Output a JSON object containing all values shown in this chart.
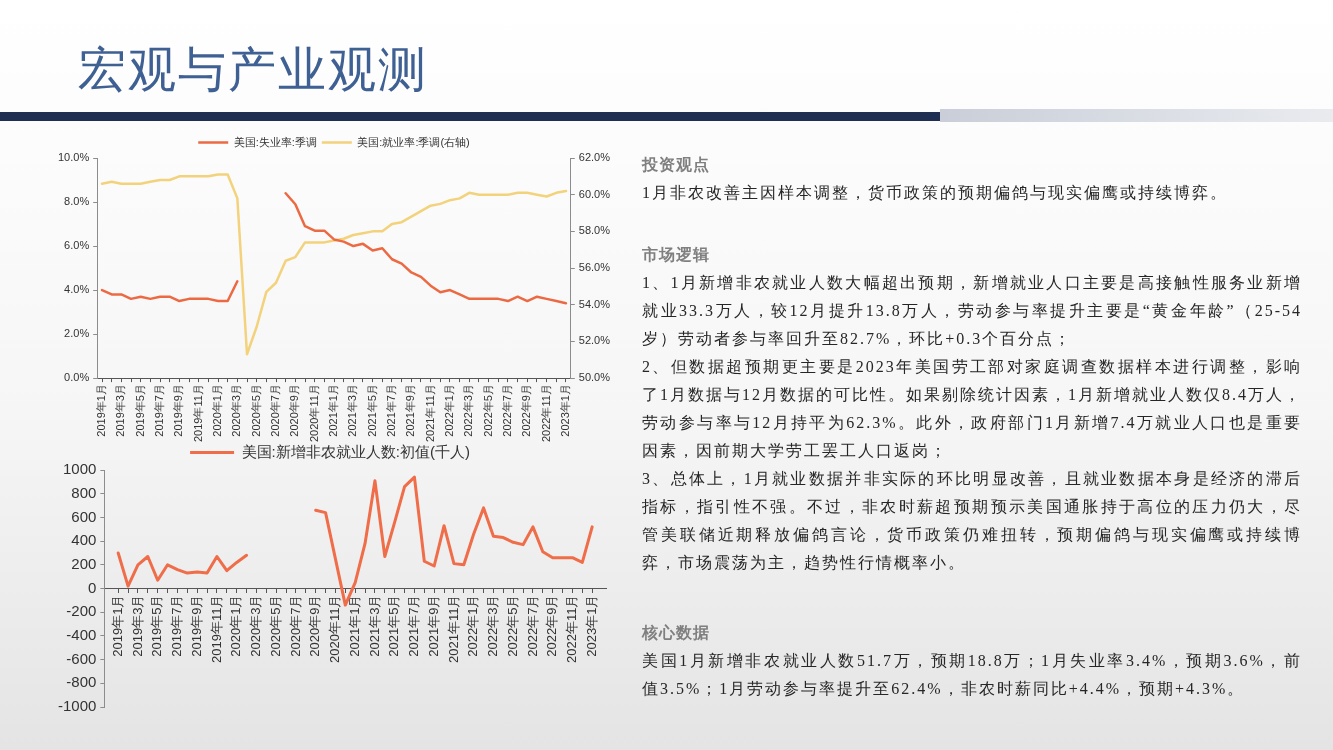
{
  "chart_data": [
    {
      "type": "line",
      "title": "宏观与产业观测",
      "categories": [
        "2019年1月",
        null,
        "2019年3月",
        null,
        "2019年5月",
        null,
        "2019年7月",
        null,
        "2019年9月",
        null,
        "2019年11月",
        null,
        "2020年1月",
        null,
        "2020年3月",
        null,
        "2020年5月",
        null,
        "2020年7月",
        null,
        "2020年9月",
        null,
        "2020年11月",
        null,
        "2021年1月",
        null,
        "2021年3月",
        null,
        "2021年5月",
        null,
        "2021年7月",
        null,
        "2021年9月",
        null,
        "2021年11月",
        null,
        "2022年1月",
        null,
        "2022年3月",
        null,
        "2022年5月",
        null,
        "2022年7月",
        null,
        "2022年9月",
        null,
        "2022年11月",
        null,
        "2023年1月"
      ],
      "series": [
        {
          "name": "美国:失业率:季调",
          "color": "#ec6a43",
          "values": [
            4.0,
            3.8,
            3.8,
            3.6,
            3.7,
            3.6,
            3.7,
            3.7,
            3.5,
            3.6,
            3.6,
            3.6,
            3.5,
            3.5,
            4.4,
            null,
            null,
            null,
            null,
            8.4,
            7.9,
            6.9,
            6.7,
            6.7,
            6.3,
            6.2,
            6.0,
            6.1,
            5.8,
            5.9,
            5.4,
            5.2,
            4.8,
            4.6,
            4.2,
            3.9,
            4.0,
            3.8,
            3.6,
            3.6,
            3.6,
            3.6,
            3.5,
            3.7,
            3.5,
            3.7,
            3.6,
            3.5,
            3.4
          ]
        },
        {
          "name": "美国:就业率:季调(右轴)",
          "color": "#f3d27c",
          "axis": "y2",
          "values": [
            60.6,
            60.7,
            60.6,
            60.6,
            60.6,
            60.7,
            60.8,
            60.8,
            61.0,
            61.0,
            61.0,
            61.0,
            61.1,
            61.1,
            59.8,
            51.3,
            52.8,
            54.7,
            55.2,
            56.4,
            56.6,
            57.4,
            57.4,
            57.4,
            57.5,
            57.6,
            57.8,
            57.9,
            58.0,
            58.0,
            58.4,
            58.5,
            58.8,
            59.1,
            59.4,
            59.5,
            59.7,
            59.8,
            60.1,
            60.0,
            60.0,
            60.0,
            60.0,
            60.1,
            60.1,
            60.0,
            59.9,
            60.1,
            60.2
          ]
        }
      ],
      "ylim": [
        0,
        10
      ],
      "yticks": [
        {
          "value": 0,
          "label": "0.0%"
        },
        {
          "value": 2,
          "label": "2.0%"
        },
        {
          "value": 4,
          "label": "4.0%"
        },
        {
          "value": 6,
          "label": "6.0%"
        },
        {
          "value": 8,
          "label": "8.0%"
        },
        {
          "value": 10,
          "label": "10.0%"
        }
      ],
      "y2lim": [
        50,
        62
      ],
      "y2ticks": [
        {
          "value": 50,
          "label": "50.0%"
        },
        {
          "value": 52,
          "label": "52.0%"
        },
        {
          "value": 54,
          "label": "54.0%"
        },
        {
          "value": 56,
          "label": "56.0%"
        },
        {
          "value": 58,
          "label": "58.0%"
        },
        {
          "value": 60,
          "label": "60.0%"
        },
        {
          "value": 62,
          "label": "62.0%"
        }
      ],
      "legend": "top"
    },
    {
      "type": "line",
      "categories": [
        "2019年1月",
        null,
        "2019年3月",
        null,
        "2019年5月",
        null,
        "2019年7月",
        null,
        "2019年9月",
        null,
        "2019年11月",
        null,
        "2020年1月",
        null,
        "2020年3月",
        null,
        "2020年5月",
        null,
        "2020年7月",
        null,
        "2020年9月",
        null,
        "2020年11月",
        null,
        "2021年1月",
        null,
        "2021年3月",
        null,
        "2021年5月",
        null,
        "2021年7月",
        null,
        "2021年9月",
        null,
        "2021年11月",
        null,
        "2022年1月",
        null,
        "2022年3月",
        null,
        "2022年5月",
        null,
        "2022年7月",
        null,
        "2022年9月",
        null,
        "2022年11月",
        null,
        "2023年1月"
      ],
      "series": [
        {
          "name": "美国:新增非农就业人数:初值(千人)",
          "color": "#ef6d48",
          "values": [
            300,
            20,
            200,
            270,
            70,
            200,
            160,
            130,
            140,
            130,
            270,
            150,
            220,
            280,
            null,
            null,
            null,
            null,
            null,
            null,
            660,
            640,
            250,
            -140,
            50,
            380,
            910,
            270,
            560,
            860,
            940,
            230,
            190,
            530,
            210,
            200,
            460,
            680,
            440,
            430,
            390,
            370,
            520,
            310,
            260,
            260,
            260,
            220,
            520
          ]
        }
      ],
      "ylim": [
        -1000,
        1000
      ],
      "yticks": [
        -1000,
        -800,
        -600,
        -400,
        -200,
        0,
        200,
        400,
        600,
        800,
        1000
      ],
      "legend": "top"
    },
    {
      "type": "other",
      "title": "投资观点",
      "annotations": [
        "1月非农改善主因样本调整，货币政策的预期偏鸽与现实偏鹰或持续博弈。"
      ]
    },
    {
      "type": "other",
      "title": "市场逻辑",
      "annotations": [
        "1、1月新增非农就业人数大幅超出预期，新增就业人口主要是高接触性服务业新增就业33.3万人，较12月提升13.8万人，劳动参与率提升主要是“黄金年龄”（25-54岁）劳动者参与率回升至82.7%，环比+0.3个百分点；",
        "2、但数据超预期更主要是2023年美国劳工部对家庭调查数据样本进行调整，影响了1月数据与12月数据的可比性。如果剔除统计因素，1月新增就业人数仅8.4万人，劳动参与率与12月持平为62.3%。此外，政府部门1月新增7.4万就业人口也是重要因素，因前期大学劳工罢工人口返岗；",
        "3、总体上，1月就业数据并非实际的环比明显改善，且就业数据本身是经济的滞后指标，指引性不强。不过，非农时薪超预期预示美国通胀持于高位的压力仍大，尽管美联储近期释放偏鸽言论，货币政策仍难扭转，预期偏鸽与现实偏鹰或持续博弈，市场震荡为主，趋势性行情概率小。"
      ]
    },
    {
      "type": "other",
      "title": "核心数据",
      "annotations": [
        "美国1月新增非农就业人数51.7万，预期18.8万；1月失业率3.4%，预期3.6%，前值3.5%；1月劳动参与率提升至62.4%，非农时薪同比+4.4%，预期+4.3%。"
      ]
    }
  ]
}
